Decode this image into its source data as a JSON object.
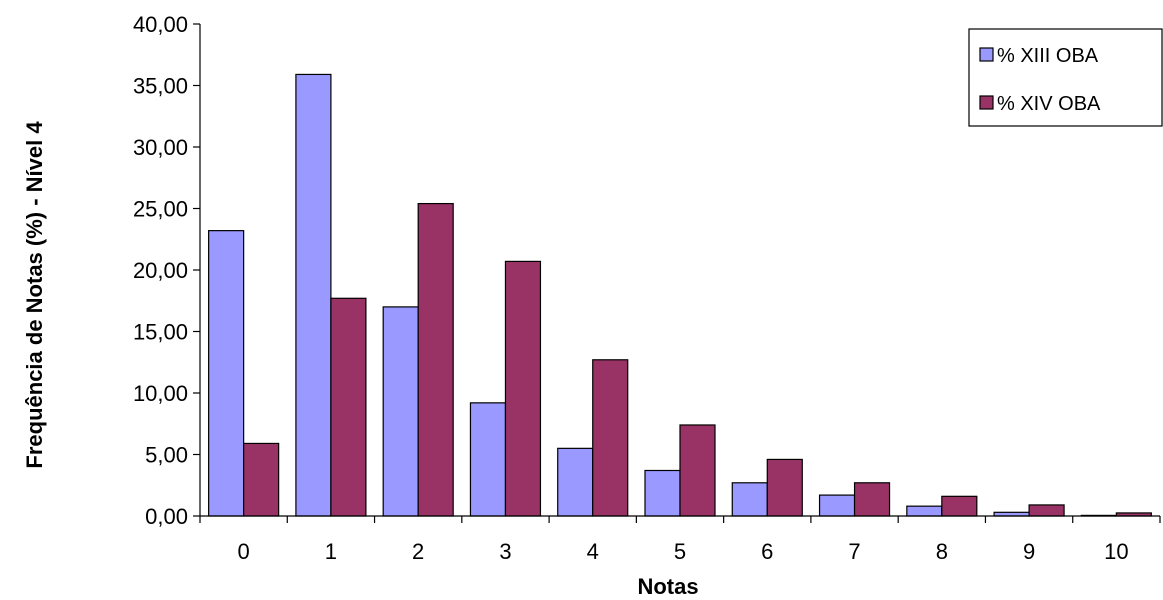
{
  "chart_data": {
    "type": "bar",
    "categories": [
      "0",
      "1",
      "2",
      "3",
      "4",
      "5",
      "6",
      "7",
      "8",
      "9",
      "10"
    ],
    "series": [
      {
        "name": "% XIII OBA",
        "color": "#9999ff",
        "values": [
          23.2,
          35.9,
          17.0,
          9.2,
          5.5,
          3.7,
          2.7,
          1.7,
          0.8,
          0.3,
          0.05
        ]
      },
      {
        "name": "% XIV OBA",
        "color": "#993366",
        "values": [
          5.9,
          17.7,
          25.4,
          20.7,
          12.7,
          7.4,
          4.6,
          2.7,
          1.6,
          0.9,
          0.25
        ]
      }
    ],
    "xlabel": "Notas",
    "ylabel": "Frequência de Notas (%) - Nível 4",
    "ylim": [
      0,
      40
    ],
    "yticks": [
      "0,00",
      "5,00",
      "10,00",
      "15,00",
      "20,00",
      "25,00",
      "30,00",
      "35,00",
      "40,00"
    ],
    "grid": false,
    "legend_position": "top-right"
  }
}
